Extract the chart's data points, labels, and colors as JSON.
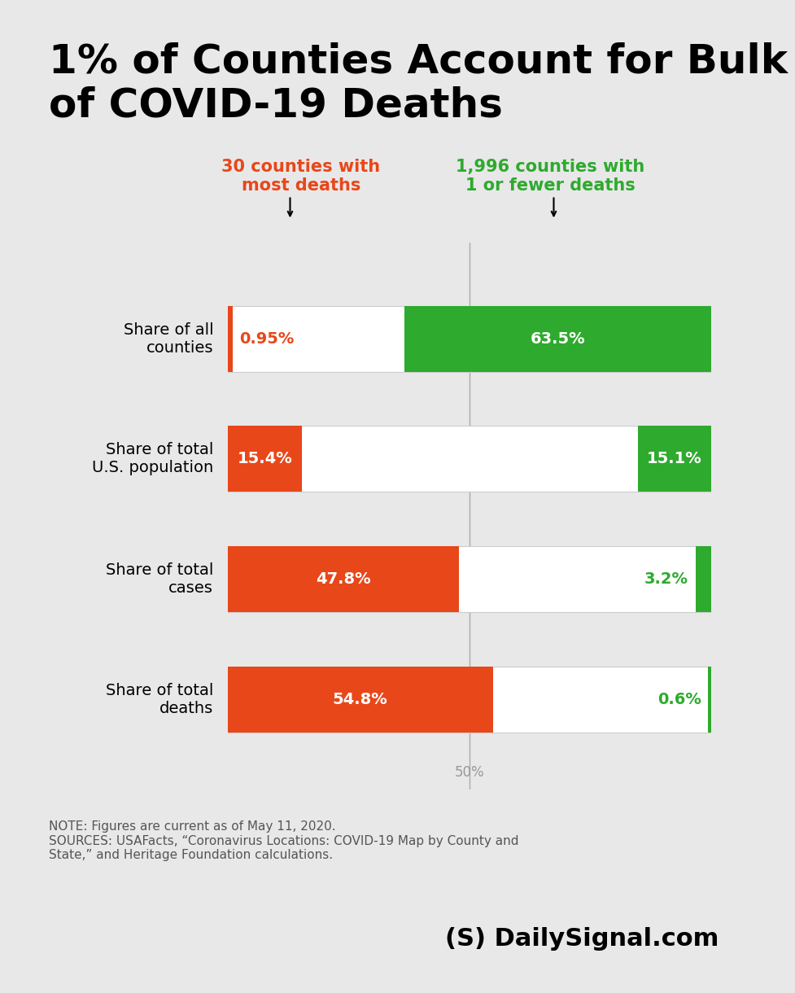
{
  "title_line1": "1% of Counties Account for Bulk",
  "title_line2": "of COVID-19 Deaths",
  "background_color": "#e8e8e8",
  "orange_color": "#e8471a",
  "green_color": "#2eaa2e",
  "white_color": "#ffffff",
  "label_orange": "30 counties with\nmost deaths",
  "label_green": "1,996 counties with\n1 or fewer deaths",
  "categories": [
    "Share of all\ncounties",
    "Share of total\nU.S. population",
    "Share of total\ncases",
    "Share of total\ndeaths"
  ],
  "orange_values": [
    0.95,
    15.4,
    47.8,
    54.8
  ],
  "green_values": [
    63.5,
    15.1,
    3.2,
    0.6
  ],
  "orange_labels": [
    "0.95%",
    "15.4%",
    "47.8%",
    "54.8%"
  ],
  "green_labels": [
    "63.5%",
    "15.1%",
    "3.2%",
    "0.6%"
  ],
  "max_value": 100,
  "midpoint": 50,
  "note_text": "NOTE: Figures are current as of May 11, 2020.\nSOURCES: USAFacts, “Coronavirus Locations: COVID-19 Map by County and\nState,” and Heritage Foundation calculations.",
  "watermark": "(S) DailySignal.com",
  "fifty_pct_label": "50%"
}
